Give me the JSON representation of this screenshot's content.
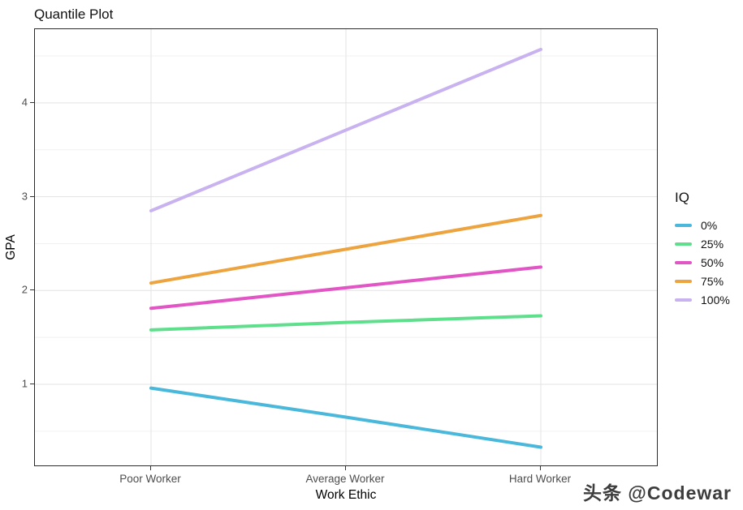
{
  "title": "Quantile Plot",
  "watermark": "头条 @Codewar",
  "chart_data": {
    "type": "line",
    "title": "Quantile Plot",
    "xlabel": "Work Ethic",
    "ylabel": "GPA",
    "categories": [
      "Poor Worker",
      "Average Worker",
      "Hard Worker"
    ],
    "series": [
      {
        "name": "0%",
        "color": "#49B8DB",
        "values": [
          0.96,
          0.65,
          0.33
        ]
      },
      {
        "name": "25%",
        "color": "#5DDF8C",
        "values": [
          1.58,
          1.66,
          1.73
        ]
      },
      {
        "name": "50%",
        "color": "#E255C5",
        "values": [
          1.81,
          2.03,
          2.25
        ]
      },
      {
        "name": "75%",
        "color": "#EDA33E",
        "values": [
          2.08,
          2.44,
          2.8
        ]
      },
      {
        "name": "100%",
        "color": "#C8B2EF",
        "values": [
          2.85,
          3.71,
          4.57
        ]
      }
    ],
    "legend_title": "IQ",
    "legend_position": "right",
    "y_ticks": [
      1,
      2,
      3,
      4
    ],
    "y_minor_ticks": [
      0.5,
      1.5,
      2.5,
      3.5,
      4.5
    ],
    "ylim": [
      0.12,
      4.79
    ],
    "grid": true,
    "colors": {
      "grid_major": "#E3E3E3",
      "grid_minor": "#F1F1F1",
      "panel_border": "#2b2b2b",
      "tick_text": "#4d4d4d"
    }
  }
}
